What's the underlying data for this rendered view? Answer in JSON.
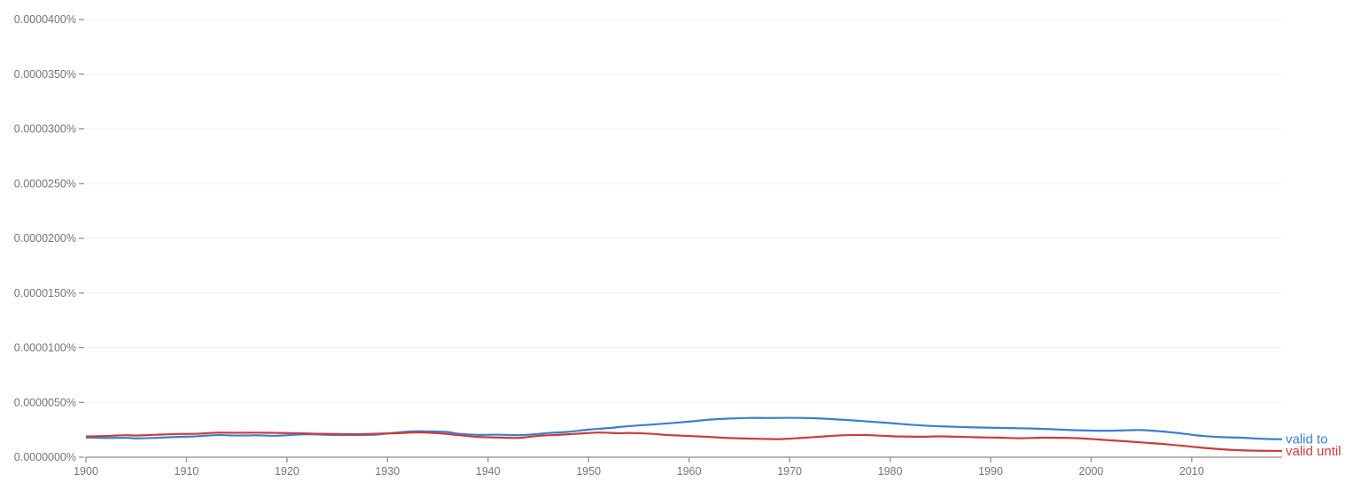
{
  "chart_data": {
    "type": "line",
    "title": "",
    "xlabel": "",
    "ylabel": "",
    "xlim": [
      1900,
      2019
    ],
    "ylim": [
      0,
      4e-05
    ],
    "grid": true,
    "x_ticks": [
      "1900",
      "1910",
      "1920",
      "1930",
      "1940",
      "1950",
      "1960",
      "1970",
      "1980",
      "1990",
      "2000",
      "2010"
    ],
    "x_tick_values": [
      1900,
      1910,
      1920,
      1930,
      1940,
      1950,
      1960,
      1970,
      1980,
      1990,
      2000,
      2010
    ],
    "y_ticks": [
      "0.0000000%",
      "0.0000050%",
      "0.0000100%",
      "0.0000150%",
      "0.0000200%",
      "0.0000250%",
      "0.0000300%",
      "0.0000350%",
      "0.0000400%"
    ],
    "y_tick_values": [
      0,
      5e-06,
      1e-05,
      1.5e-05,
      2e-05,
      2.5e-05,
      3e-05,
      3.5e-05,
      4e-05
    ],
    "legend_placement": "line-end labels, right",
    "series": [
      {
        "name": "valid to",
        "color": "#3b7fcc",
        "x": [
          1900,
          1902,
          1904,
          1905,
          1907,
          1909,
          1911,
          1913,
          1915,
          1917,
          1919,
          1922,
          1925,
          1928,
          1929,
          1931,
          1933,
          1935,
          1936,
          1937,
          1939,
          1941,
          1943,
          1945,
          1946,
          1948,
          1950,
          1952,
          1954,
          1956,
          1958,
          1960,
          1962,
          1964,
          1966,
          1968,
          1970,
          1972,
          1974,
          1976,
          1978,
          1980,
          1982,
          1984,
          1986,
          1988,
          1990,
          1992,
          1994,
          1996,
          1998,
          2000,
          2002,
          2004,
          2005,
          2007,
          2009,
          2011,
          2013,
          2015,
          2017,
          2019
        ],
        "values": [
          1.8e-06,
          1.76e-06,
          1.77e-06,
          1.72e-06,
          1.77e-06,
          1.85e-06,
          1.91e-06,
          2.02e-06,
          1.98e-06,
          2e-06,
          1.96e-06,
          2.09e-06,
          2.02e-06,
          2.04e-06,
          2.07e-06,
          2.26e-06,
          2.37e-06,
          2.34e-06,
          2.3e-06,
          2.15e-06,
          2.04e-06,
          2.06e-06,
          2.01e-06,
          2.12e-06,
          2.21e-06,
          2.32e-06,
          2.52e-06,
          2.66e-06,
          2.84e-06,
          2.96e-06,
          3.1e-06,
          3.25e-06,
          3.43e-06,
          3.53e-06,
          3.59e-06,
          3.58e-06,
          3.6e-06,
          3.57e-06,
          3.49e-06,
          3.38e-06,
          3.25e-06,
          3.12e-06,
          2.97e-06,
          2.86e-06,
          2.79e-06,
          2.73e-06,
          2.69e-06,
          2.66e-06,
          2.62e-06,
          2.56e-06,
          2.48e-06,
          2.43e-06,
          2.42e-06,
          2.47e-06,
          2.48e-06,
          2.36e-06,
          2.17e-06,
          1.95e-06,
          1.83e-06,
          1.78e-06,
          1.68e-06,
          1.64e-06
        ]
      },
      {
        "name": "valid until",
        "color": "#cc3b3b",
        "x": [
          1900,
          1902,
          1904,
          1905,
          1907,
          1909,
          1911,
          1913,
          1915,
          1917,
          1919,
          1921,
          1923,
          1925,
          1927,
          1929,
          1931,
          1933,
          1935,
          1937,
          1939,
          1941,
          1943,
          1945,
          1947,
          1949,
          1951,
          1953,
          1954,
          1956,
          1958,
          1960,
          1962,
          1964,
          1966,
          1968,
          1969,
          1971,
          1973,
          1975,
          1977,
          1979,
          1981,
          1983,
          1985,
          1987,
          1989,
          1991,
          1993,
          1995,
          1997,
          1999,
          2001,
          2003,
          2005,
          2007,
          2009,
          2011,
          2013,
          2015,
          2017,
          2019
        ],
        "values": [
          1.89e-06,
          1.94e-06,
          2.01e-06,
          1.98e-06,
          2.05e-06,
          2.12e-06,
          2.14e-06,
          2.24e-06,
          2.23e-06,
          2.24e-06,
          2.22e-06,
          2.19e-06,
          2.14e-06,
          2.12e-06,
          2.1e-06,
          2.15e-06,
          2.19e-06,
          2.27e-06,
          2.19e-06,
          2.02e-06,
          1.85e-06,
          1.8e-06,
          1.76e-06,
          1.95e-06,
          2.04e-06,
          2.15e-06,
          2.25e-06,
          2.19e-06,
          2.21e-06,
          2.15e-06,
          2.02e-06,
          1.94e-06,
          1.85e-06,
          1.75e-06,
          1.7e-06,
          1.66e-06,
          1.65e-06,
          1.75e-06,
          1.87e-06,
          1.99e-06,
          2.03e-06,
          1.97e-06,
          1.89e-06,
          1.87e-06,
          1.9e-06,
          1.86e-06,
          1.81e-06,
          1.78e-06,
          1.73e-06,
          1.78e-06,
          1.77e-06,
          1.72e-06,
          1.6e-06,
          1.48e-06,
          1.35e-06,
          1.22e-06,
          1.05e-06,
          8.7e-07,
          7.2e-07,
          6.3e-07,
          5.9e-07,
          5.7e-07
        ]
      }
    ]
  }
}
